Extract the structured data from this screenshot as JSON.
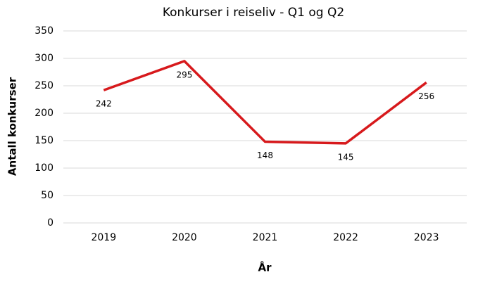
{
  "chart_data": {
    "type": "line",
    "title": "Konkurser i reiseliv - Q1 og Q2",
    "x_label": "År",
    "y_label": "Antall konkurser",
    "categories": [
      "2019",
      "2020",
      "2021",
      "2022",
      "2023"
    ],
    "values": [
      242,
      295,
      148,
      145,
      256
    ],
    "color": "#d7191c",
    "ylim": [
      0,
      350
    ],
    "yticks": [
      0,
      50,
      100,
      150,
      200,
      250,
      300,
      350
    ],
    "grid": true
  }
}
